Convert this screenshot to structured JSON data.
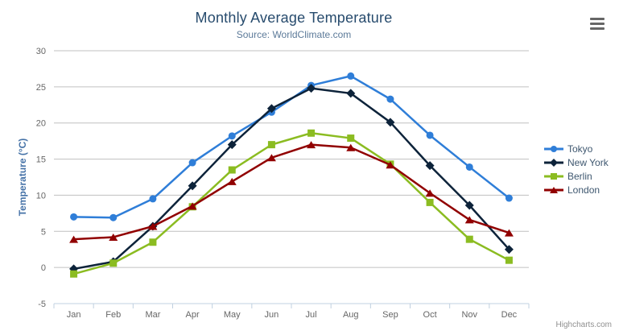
{
  "chart_data": {
    "type": "line",
    "title": "Monthly Average Temperature",
    "subtitle": "Source: WorldClimate.com",
    "xlabel": "",
    "ylabel": "Temperature (°C)",
    "categories": [
      "Jan",
      "Feb",
      "Mar",
      "Apr",
      "May",
      "Jun",
      "Jul",
      "Aug",
      "Sep",
      "Oct",
      "Nov",
      "Dec"
    ],
    "yticks": [
      -5,
      0,
      5,
      10,
      15,
      20,
      25,
      30
    ],
    "ylim": [
      -5,
      30
    ],
    "grid": true,
    "legend_position": "right",
    "series": [
      {
        "name": "Tokyo",
        "color": "#2f7ed8",
        "marker": "circle",
        "values": [
          7.0,
          6.9,
          9.5,
          14.5,
          18.2,
          21.5,
          25.2,
          26.5,
          23.3,
          18.3,
          13.9,
          9.6
        ]
      },
      {
        "name": "New York",
        "color": "#0d233a",
        "marker": "diamond",
        "values": [
          -0.2,
          0.8,
          5.7,
          11.3,
          17.0,
          22.0,
          24.8,
          24.1,
          20.1,
          14.1,
          8.6,
          2.5
        ]
      },
      {
        "name": "Berlin",
        "color": "#8bbc21",
        "marker": "square",
        "values": [
          -0.9,
          0.6,
          3.5,
          8.4,
          13.5,
          17.0,
          18.6,
          17.9,
          14.3,
          9.0,
          3.9,
          1.0
        ]
      },
      {
        "name": "London",
        "color": "#910000",
        "marker": "triangle",
        "values": [
          3.9,
          4.2,
          5.7,
          8.5,
          11.9,
          15.2,
          17.0,
          16.6,
          14.2,
          10.3,
          6.6,
          4.8
        ]
      }
    ]
  },
  "export_menu": {
    "icon": "hamburger-menu-icon"
  },
  "credits": {
    "label": "Highcharts.com"
  },
  "theme": {
    "title_color": "#274b6d",
    "subtitle_color": "#5c7a99",
    "axis_title_color": "#4572a7",
    "tick_label_color": "#666666",
    "gridline_color": "#c0c0c0",
    "axis_line_color": "#c0d0e0",
    "legend_text_color": "#3e576f"
  }
}
